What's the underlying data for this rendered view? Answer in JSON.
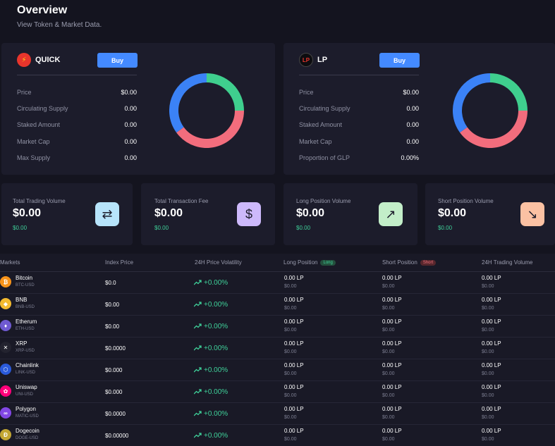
{
  "page": {
    "title": "Overview",
    "subtitle": "View Token & Market Data."
  },
  "tokens": [
    {
      "name": "QUICK",
      "buy_label": "Buy",
      "stats": [
        {
          "label": "Price",
          "value": "$0.00"
        },
        {
          "label": "Circulating Supply",
          "value": "0.00"
        },
        {
          "label": "Staked Amount",
          "value": "0.00"
        },
        {
          "label": "Market Cap",
          "value": "0.00"
        },
        {
          "label": "Max Supply",
          "value": "0.00"
        }
      ],
      "donut": [
        {
          "share": 0.25,
          "color": "#3fcf8e"
        },
        {
          "share": 0.4,
          "color": "#f26d7d"
        },
        {
          "share": 0.35,
          "color": "#3b82f6"
        }
      ]
    },
    {
      "name": "LP",
      "buy_label": "Buy",
      "stats": [
        {
          "label": "Price",
          "value": "$0.00"
        },
        {
          "label": "Circulating Supply",
          "value": "0.00"
        },
        {
          "label": "Staked Amount",
          "value": "0.00"
        },
        {
          "label": "Market Cap",
          "value": "0.00"
        },
        {
          "label": "Proportion of GLP",
          "value": "0.00%"
        }
      ],
      "donut": [
        {
          "share": 0.25,
          "color": "#3fcf8e"
        },
        {
          "share": 0.4,
          "color": "#f26d7d"
        },
        {
          "share": 0.35,
          "color": "#3b82f6"
        }
      ]
    }
  ],
  "metrics": [
    {
      "label": "Total Trading Volume",
      "value": "$0.00",
      "sub": "$0.00",
      "icon": "swap-icon",
      "glyph": "⇄",
      "color": "#b7e4fb"
    },
    {
      "label": "Total Transaction Fee",
      "value": "$0.00",
      "sub": "$0.00",
      "icon": "dollar-icon",
      "glyph": "$",
      "color": "#cdb9fb"
    },
    {
      "label": "Long Position Volume",
      "value": "$0.00",
      "sub": "$0.00",
      "icon": "arrow-up-right-icon",
      "glyph": "↗",
      "color": "#c3eec9"
    },
    {
      "label": "Short Position Volume",
      "value": "$0.00",
      "sub": "$0.00",
      "icon": "arrow-down-right-icon",
      "glyph": "↘",
      "color": "#fbc1a3"
    }
  ],
  "table": {
    "headers": {
      "markets": "Markets",
      "index_price": "Index Price",
      "volatility": "24H Price Volatility",
      "long": "Long Position",
      "long_badge": "Long",
      "short": "Short Position",
      "short_badge": "Short",
      "volume": "24H Trading Volume"
    },
    "rows": [
      {
        "name": "Bitcoin",
        "pair": "BTC-USD",
        "price": "$0.0",
        "change": "+0.00%",
        "long": "0.00 LP",
        "long_usd": "$0.00",
        "short": "0.00 LP",
        "short_usd": "$0.00",
        "vol": "0.00 LP",
        "vol_usd": "$0.00",
        "icon": "bitcoin-icon",
        "glyph": "₿",
        "color": "#f7931a"
      },
      {
        "name": "BNB",
        "pair": "BNB-USD",
        "price": "$0.00",
        "change": "+0.00%",
        "long": "0.00 LP",
        "long_usd": "$0.00",
        "short": "0.00 LP",
        "short_usd": "$0.00",
        "vol": "0.00 LP",
        "vol_usd": "$0.00",
        "icon": "bnb-icon",
        "glyph": "◆",
        "color": "#f3ba2f"
      },
      {
        "name": "Etherum",
        "pair": "ETH-USD",
        "price": "$0.00",
        "change": "+0.00%",
        "long": "0.00 LP",
        "long_usd": "$0.00",
        "short": "0.00 LP",
        "short_usd": "$0.00",
        "vol": "0.00 LP",
        "vol_usd": "$0.00",
        "icon": "ethereum-icon",
        "glyph": "♦",
        "color": "#6f5ad1"
      },
      {
        "name": "XRP",
        "pair": "XRP-USD",
        "price": "$0.0000",
        "change": "+0.00%",
        "long": "0.00 LP",
        "long_usd": "$0.00",
        "short": "0.00 LP",
        "short_usd": "$0.00",
        "vol": "0.00 LP",
        "vol_usd": "$0.00",
        "icon": "xrp-icon",
        "glyph": "✕",
        "color": "#23232f"
      },
      {
        "name": "Chainlink",
        "pair": "LINK-USD",
        "price": "$0.000",
        "change": "+0.00%",
        "long": "0.00 LP",
        "long_usd": "$0.00",
        "short": "0.00 LP",
        "short_usd": "$0.00",
        "vol": "0.00 LP",
        "vol_usd": "$0.00",
        "icon": "chainlink-icon",
        "glyph": "⬡",
        "color": "#2a5ada"
      },
      {
        "name": "Uniswap",
        "pair": "UNI-USD",
        "price": "$0.000",
        "change": "+0.00%",
        "long": "0.00 LP",
        "long_usd": "$0.00",
        "short": "0.00 LP",
        "short_usd": "$0.00",
        "vol": "0.00 LP",
        "vol_usd": "$0.00",
        "icon": "uniswap-icon",
        "glyph": "✿",
        "color": "#ff007a"
      },
      {
        "name": "Polygon",
        "pair": "MATIC-USD",
        "price": "$0.0000",
        "change": "+0.00%",
        "long": "0.00 LP",
        "long_usd": "$0.00",
        "short": "0.00 LP",
        "short_usd": "$0.00",
        "vol": "0.00 LP",
        "vol_usd": "$0.00",
        "icon": "polygon-icon",
        "glyph": "∞",
        "color": "#8247e5"
      },
      {
        "name": "Dogecoin",
        "pair": "DOGE-USD",
        "price": "$0.00000",
        "change": "+0.00%",
        "long": "0.00 LP",
        "long_usd": "$0.00",
        "short": "0.00 LP",
        "short_usd": "$0.00",
        "vol": "0.00 LP",
        "vol_usd": "$0.00",
        "icon": "dogecoin-icon",
        "glyph": "Ð",
        "color": "#c2a633"
      }
    ]
  }
}
